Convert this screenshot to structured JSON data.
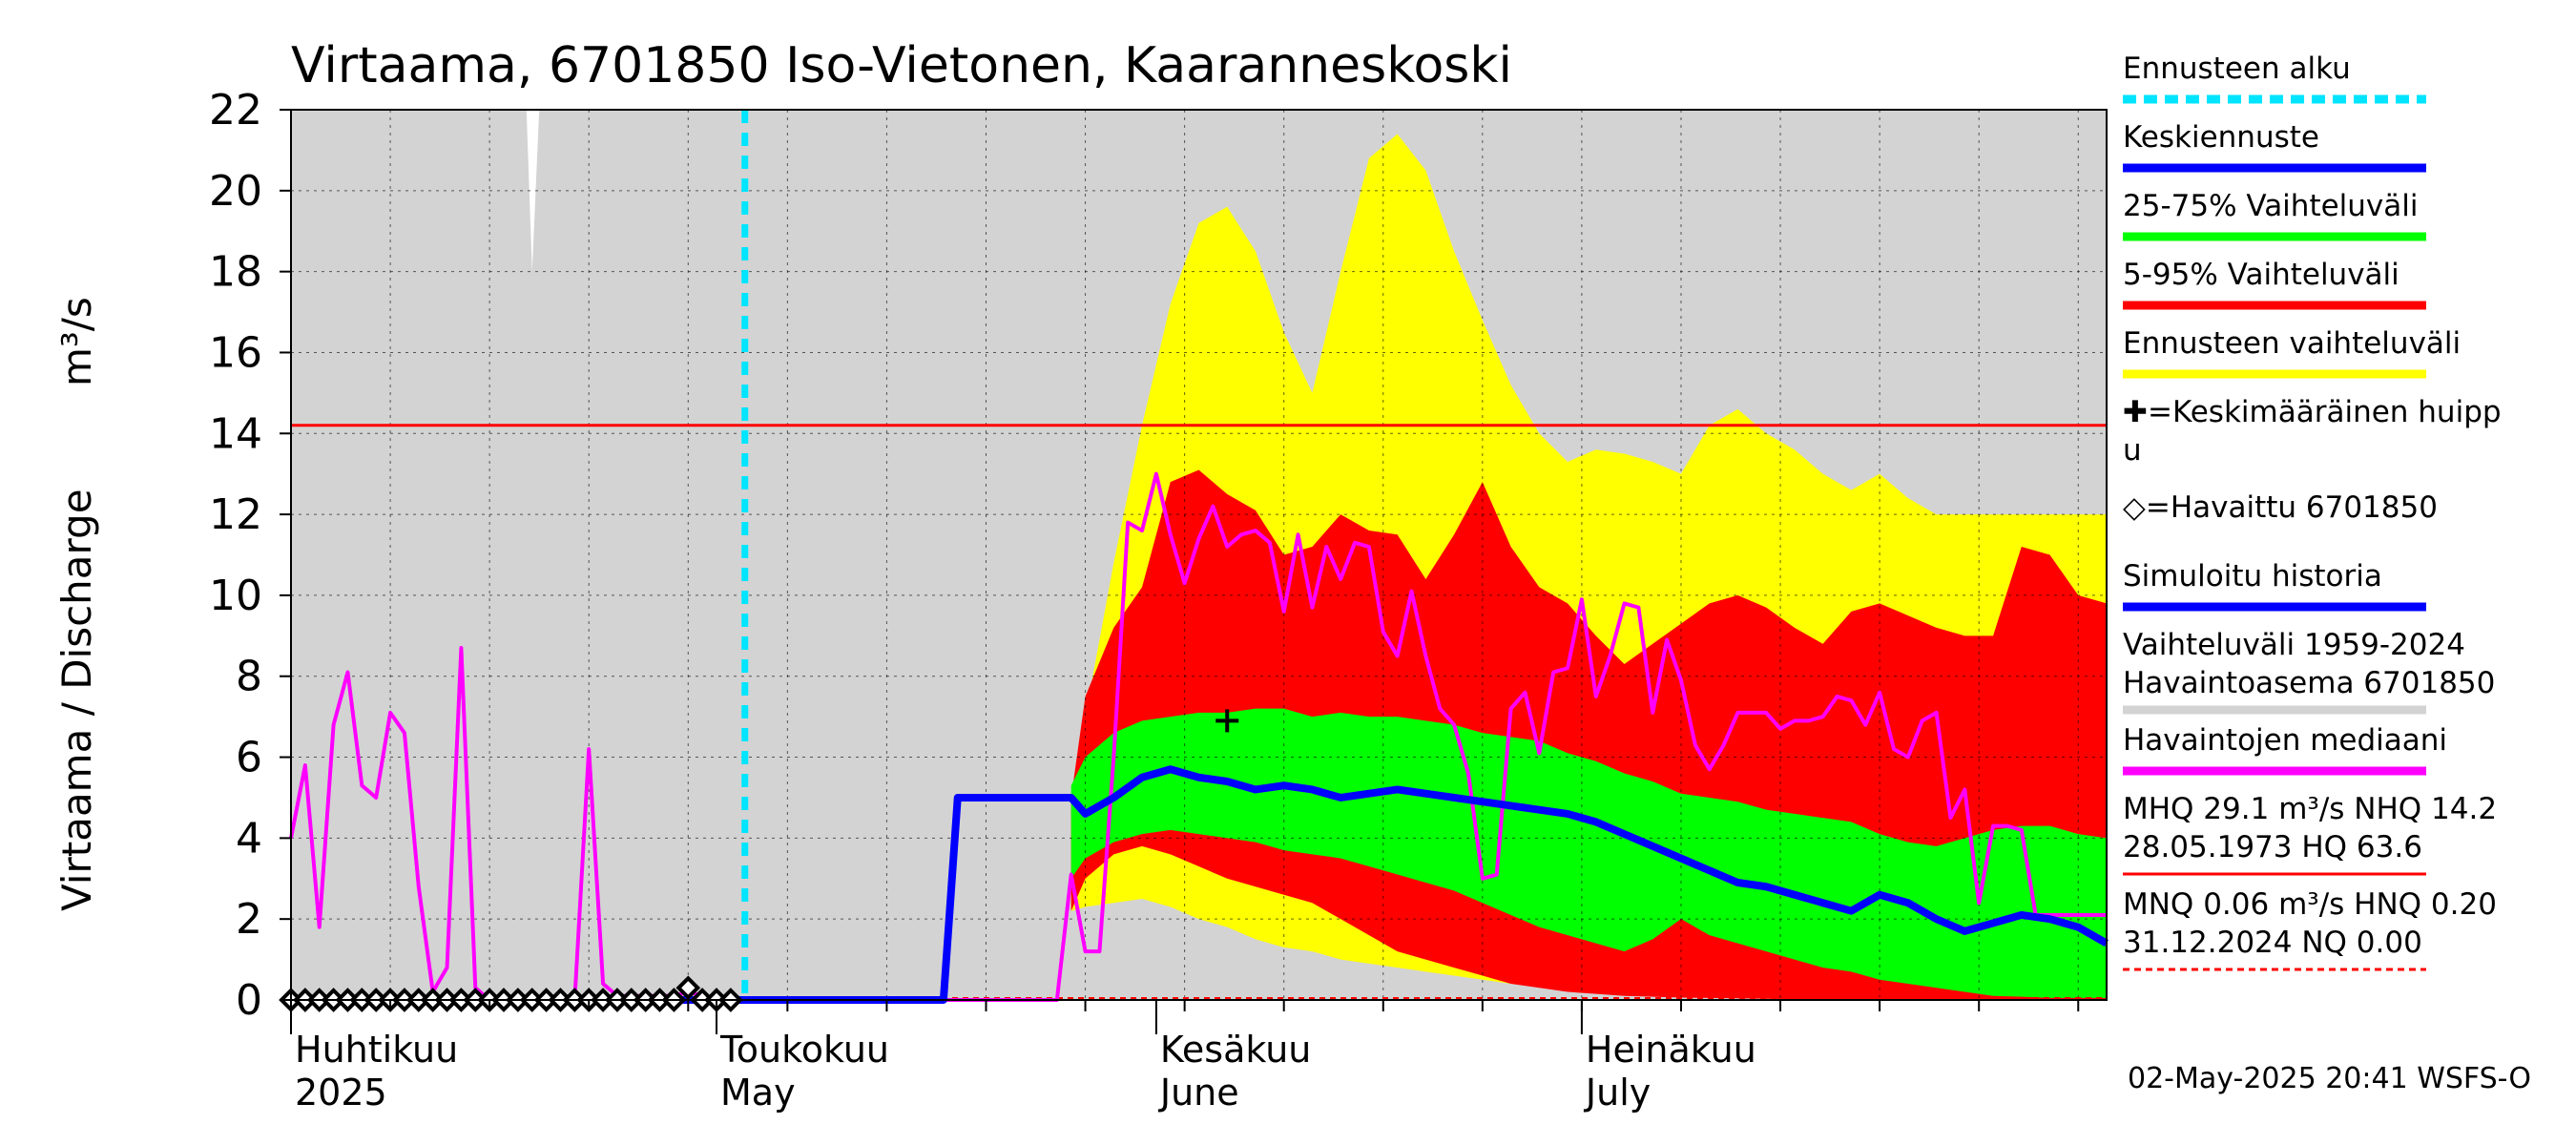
{
  "chart_data": {
    "type": "area",
    "title": "Virtaama, 6701850 Iso-Vietonen, Kaaranneskoski",
    "ylabel": "Virtaama / Discharge",
    "yunit": "m³/s",
    "ylim": [
      0,
      22
    ],
    "yticks": [
      0,
      2,
      4,
      6,
      8,
      10,
      12,
      14,
      16,
      18,
      20,
      22
    ],
    "x_range_days": [
      0,
      128
    ],
    "x_day0": "2025-04-01",
    "month_labels": [
      {
        "day": 0,
        "fi": "Huhtikuu",
        "en": "2025"
      },
      {
        "day": 30,
        "fi": "Toukokuu",
        "en": "May"
      },
      {
        "day": 61,
        "fi": "Kesäkuu",
        "en": "June"
      },
      {
        "day": 91,
        "fi": "Heinäkuu",
        "en": "July"
      }
    ],
    "forecast_start_day": 32,
    "nhq_line": 14.2,
    "nq_line": 0.0,
    "range_hist": {
      "x": [
        0,
        16,
        17,
        128
      ],
      "hi": [
        22,
        22,
        22,
        22
      ],
      "lo": [
        0,
        0,
        0,
        0
      ],
      "note": "grey historical range 1959-2024 fills the plot"
    },
    "ennuste_yellow": {
      "x": [
        55,
        56,
        58,
        60,
        62,
        64,
        66,
        68,
        70,
        72,
        74,
        76,
        78,
        80,
        82,
        84,
        86,
        88,
        90,
        92,
        94,
        96,
        98,
        100,
        102,
        104,
        106,
        108,
        110,
        112,
        114,
        116,
        118,
        120,
        122,
        124,
        126,
        128
      ],
      "hi": [
        4.6,
        7.0,
        10.8,
        14.2,
        17.2,
        19.2,
        19.6,
        18.5,
        16.5,
        15.0,
        18.0,
        20.8,
        21.4,
        20.5,
        18.5,
        16.8,
        15.2,
        14.0,
        13.3,
        13.6,
        13.5,
        13.3,
        13.0,
        14.2,
        14.6,
        14.0,
        13.6,
        13.0,
        12.6,
        13.0,
        12.4,
        12.0,
        12.0,
        12.0,
        12.0,
        12.0,
        12.0,
        12.0
      ],
      "lo": [
        2.2,
        2.3,
        2.4,
        2.5,
        2.3,
        2.0,
        1.8,
        1.5,
        1.3,
        1.2,
        1.0,
        0.9,
        0.8,
        0.7,
        0.6,
        0.5,
        0.4,
        0.35,
        0.3,
        0.25,
        0.2,
        0.15,
        0.12,
        0.1,
        0.08,
        0.06,
        0.05,
        0.04,
        0.03,
        0.02,
        0.02,
        0.01,
        0.01,
        0.01,
        0.0,
        0.0,
        0.0,
        0.0
      ]
    },
    "band_5_95": {
      "x": [
        55,
        56,
        58,
        60,
        62,
        64,
        66,
        68,
        70,
        72,
        74,
        76,
        78,
        80,
        82,
        84,
        86,
        88,
        90,
        92,
        94,
        96,
        98,
        100,
        102,
        104,
        106,
        108,
        110,
        112,
        114,
        116,
        118,
        120,
        122,
        124,
        126,
        128
      ],
      "hi": [
        5.0,
        7.5,
        9.2,
        10.2,
        12.8,
        13.1,
        12.5,
        12.1,
        11.0,
        11.2,
        12.0,
        11.6,
        11.5,
        10.4,
        11.5,
        12.8,
        11.2,
        10.2,
        9.8,
        9.0,
        8.3,
        8.8,
        9.3,
        9.8,
        10.0,
        9.7,
        9.2,
        8.8,
        9.6,
        9.8,
        9.5,
        9.2,
        9.0,
        9.0,
        11.2,
        11.0,
        10.0,
        9.8
      ],
      "lo": [
        2.2,
        3.0,
        3.6,
        3.8,
        3.6,
        3.3,
        3.0,
        2.8,
        2.6,
        2.4,
        2.0,
        1.6,
        1.2,
        1.0,
        0.8,
        0.6,
        0.4,
        0.3,
        0.2,
        0.15,
        0.1,
        0.08,
        0.06,
        0.05,
        0.04,
        0.03,
        0.02,
        0.02,
        0.01,
        0.01,
        0.01,
        0.0,
        0.0,
        0.0,
        0.0,
        0.0,
        0.0,
        0.0
      ]
    },
    "band_25_75": {
      "x": [
        55,
        56,
        58,
        60,
        62,
        64,
        66,
        68,
        70,
        72,
        74,
        76,
        78,
        80,
        82,
        84,
        86,
        88,
        90,
        92,
        94,
        96,
        98,
        100,
        102,
        104,
        106,
        108,
        110,
        112,
        114,
        116,
        118,
        120,
        122,
        124,
        126,
        128
      ],
      "hi": [
        5.3,
        6.0,
        6.6,
        6.9,
        7.0,
        7.1,
        7.1,
        7.2,
        7.2,
        7.0,
        7.1,
        7.0,
        7.0,
        6.9,
        6.8,
        6.6,
        6.5,
        6.4,
        6.1,
        5.9,
        5.6,
        5.4,
        5.1,
        5.0,
        4.9,
        4.7,
        4.6,
        4.5,
        4.4,
        4.1,
        3.9,
        3.8,
        4.0,
        4.2,
        4.3,
        4.3,
        4.1,
        4.0
      ],
      "lo": [
        3.0,
        3.5,
        3.9,
        4.1,
        4.2,
        4.1,
        4.0,
        3.9,
        3.7,
        3.6,
        3.5,
        3.3,
        3.1,
        2.9,
        2.7,
        2.4,
        2.1,
        1.8,
        1.6,
        1.4,
        1.2,
        1.5,
        2.0,
        1.6,
        1.4,
        1.2,
        1.0,
        0.8,
        0.7,
        0.5,
        0.4,
        0.3,
        0.2,
        0.1,
        0.08,
        0.05,
        0.05,
        0.05
      ]
    },
    "keskiennuste": {
      "x": [
        0,
        46,
        47,
        55,
        56,
        58,
        60,
        62,
        64,
        66,
        68,
        70,
        72,
        74,
        76,
        78,
        80,
        82,
        84,
        86,
        88,
        90,
        92,
        94,
        96,
        98,
        100,
        102,
        104,
        106,
        108,
        110,
        112,
        114,
        116,
        118,
        120,
        122,
        124,
        126,
        128
      ],
      "y": [
        0.0,
        0.0,
        5.0,
        5.0,
        4.6,
        5.0,
        5.5,
        5.7,
        5.5,
        5.4,
        5.2,
        5.3,
        5.2,
        5.0,
        5.1,
        5.2,
        5.1,
        5.0,
        4.9,
        4.8,
        4.7,
        4.6,
        4.4,
        4.1,
        3.8,
        3.5,
        3.2,
        2.9,
        2.8,
        2.6,
        2.4,
        2.2,
        2.6,
        2.4,
        2.0,
        1.7,
        1.9,
        2.1,
        2.0,
        1.8,
        1.4
      ]
    },
    "median_hist": {
      "x": [
        0,
        1,
        2,
        3,
        4,
        5,
        6,
        7,
        8,
        9,
        10,
        11,
        12,
        13,
        14,
        15,
        16,
        17,
        18,
        19,
        20,
        21,
        22,
        23,
        24,
        25,
        26,
        27,
        28,
        29,
        30,
        32,
        34,
        36,
        38,
        40,
        42,
        44,
        46,
        48,
        50,
        52,
        54,
        55,
        56,
        57,
        58,
        59,
        60,
        61,
        62,
        63,
        64,
        65,
        66,
        67,
        68,
        69,
        70,
        71,
        72,
        73,
        74,
        75,
        76,
        77,
        78,
        79,
        80,
        81,
        82,
        83,
        84,
        85,
        86,
        87,
        88,
        89,
        90,
        91,
        92,
        93,
        94,
        95,
        96,
        97,
        98,
        99,
        100,
        101,
        102,
        103,
        104,
        105,
        106,
        107,
        108,
        109,
        110,
        111,
        112,
        113,
        114,
        115,
        116,
        117,
        118,
        119,
        120,
        121,
        122,
        123,
        124,
        125,
        126,
        127,
        128
      ],
      "y": [
        4.0,
        5.8,
        1.8,
        6.8,
        8.1,
        5.3,
        5.0,
        7.1,
        6.6,
        2.8,
        0.2,
        0.8,
        8.7,
        0.3,
        0.0,
        0.0,
        0.0,
        0.0,
        0.0,
        0.0,
        0.0,
        6.2,
        0.4,
        0.1,
        0.1,
        0.1,
        0.1,
        0.1,
        0.2,
        0.1,
        0.0,
        0.0,
        0.0,
        0.0,
        0.0,
        0.0,
        0.0,
        0.0,
        0.0,
        0.0,
        0.0,
        0.0,
        0.0,
        3.1,
        1.2,
        1.2,
        6.0,
        11.8,
        11.6,
        13.0,
        11.5,
        10.3,
        11.4,
        12.2,
        11.2,
        11.5,
        11.6,
        11.3,
        9.6,
        11.5,
        9.7,
        11.2,
        10.4,
        11.3,
        11.2,
        9.1,
        8.5,
        10.1,
        8.5,
        7.2,
        6.8,
        5.6,
        3.0,
        3.1,
        7.2,
        7.6,
        6.1,
        8.1,
        8.2,
        9.9,
        7.5,
        8.5,
        9.8,
        9.7,
        7.1,
        8.9,
        7.9,
        6.3,
        5.7,
        6.3,
        7.1,
        7.1,
        7.1,
        6.7,
        6.9,
        6.9,
        7.0,
        7.5,
        7.4,
        6.8,
        7.6,
        6.2,
        6.0,
        6.9,
        7.1,
        4.5,
        5.2,
        2.4,
        4.3,
        4.3,
        4.2,
        2.1,
        2.1,
        2.1,
        2.1,
        2.1,
        2.1
      ]
    },
    "observed": {
      "x": [
        0,
        1,
        2,
        3,
        4,
        5,
        6,
        7,
        8,
        9,
        10,
        11,
        12,
        13,
        14,
        15,
        16,
        17,
        18,
        19,
        20,
        21,
        22,
        23,
        24,
        25,
        26,
        27,
        28,
        29,
        30,
        31
      ],
      "y": [
        0.0,
        0.0,
        0.0,
        0.0,
        0.0,
        0.0,
        0.0,
        0.0,
        0.0,
        0.0,
        0.0,
        0.0,
        0.0,
        0.0,
        0.0,
        0.0,
        0.0,
        0.0,
        0.0,
        0.0,
        0.0,
        0.0,
        0.0,
        0.0,
        0.0,
        0.0,
        0.0,
        0.0,
        0.3,
        0.0,
        0.0,
        0.0
      ]
    },
    "mean_peak": {
      "x": 66,
      "y": 6.9
    },
    "colors": {
      "background": "#d3d3d3",
      "yellow": "#ffff00",
      "red": "#ff0000",
      "green": "#00ff00",
      "blue": "#0000ff",
      "magenta": "#ff00ff",
      "cyan": "#00e5ff",
      "grid": "#000000"
    },
    "legend": [
      {
        "label": "Ennusteen alku",
        "kind": "dashed",
        "color": "#00e5ff"
      },
      {
        "label": "Keskiennuste",
        "kind": "line",
        "color": "#0000ff"
      },
      {
        "label": "25-75% Vaihteluväli",
        "kind": "line",
        "color": "#00ff00"
      },
      {
        "label": "5-95% Vaihteluväli",
        "kind": "line",
        "color": "#ff0000"
      },
      {
        "label": "Ennusteen vaihteluväli",
        "kind": "line",
        "color": "#ffff00"
      },
      {
        "label": "✚=Keskimääräinen huipp",
        "label2": "u",
        "kind": "none",
        "color": "#000000"
      },
      {
        "label": "◇=Havaittu 6701850",
        "kind": "none",
        "color": "#000000"
      },
      {
        "label": "Simuloitu historia",
        "kind": "line",
        "color": "#0000ff"
      },
      {
        "label": "Vaihteluväli 1959-2024",
        "label2": " Havaintoasema 6701850",
        "kind": "line",
        "color": "#d3d3d3"
      },
      {
        "label": "Havaintojen mediaani",
        "kind": "line",
        "color": "#ff00ff"
      },
      {
        "label": "MHQ 29.1 m³/s NHQ 14.2",
        "label2": "28.05.1973 HQ 63.6",
        "kind": "line-thin",
        "color": "#ff0000"
      },
      {
        "label": "MNQ 0.06 m³/s HNQ 0.20",
        "label2": "31.12.2024 NQ 0.00",
        "kind": "dashed-thin",
        "color": "#ff0000"
      }
    ],
    "footer": "02-May-2025 20:41 WSFS-O"
  }
}
